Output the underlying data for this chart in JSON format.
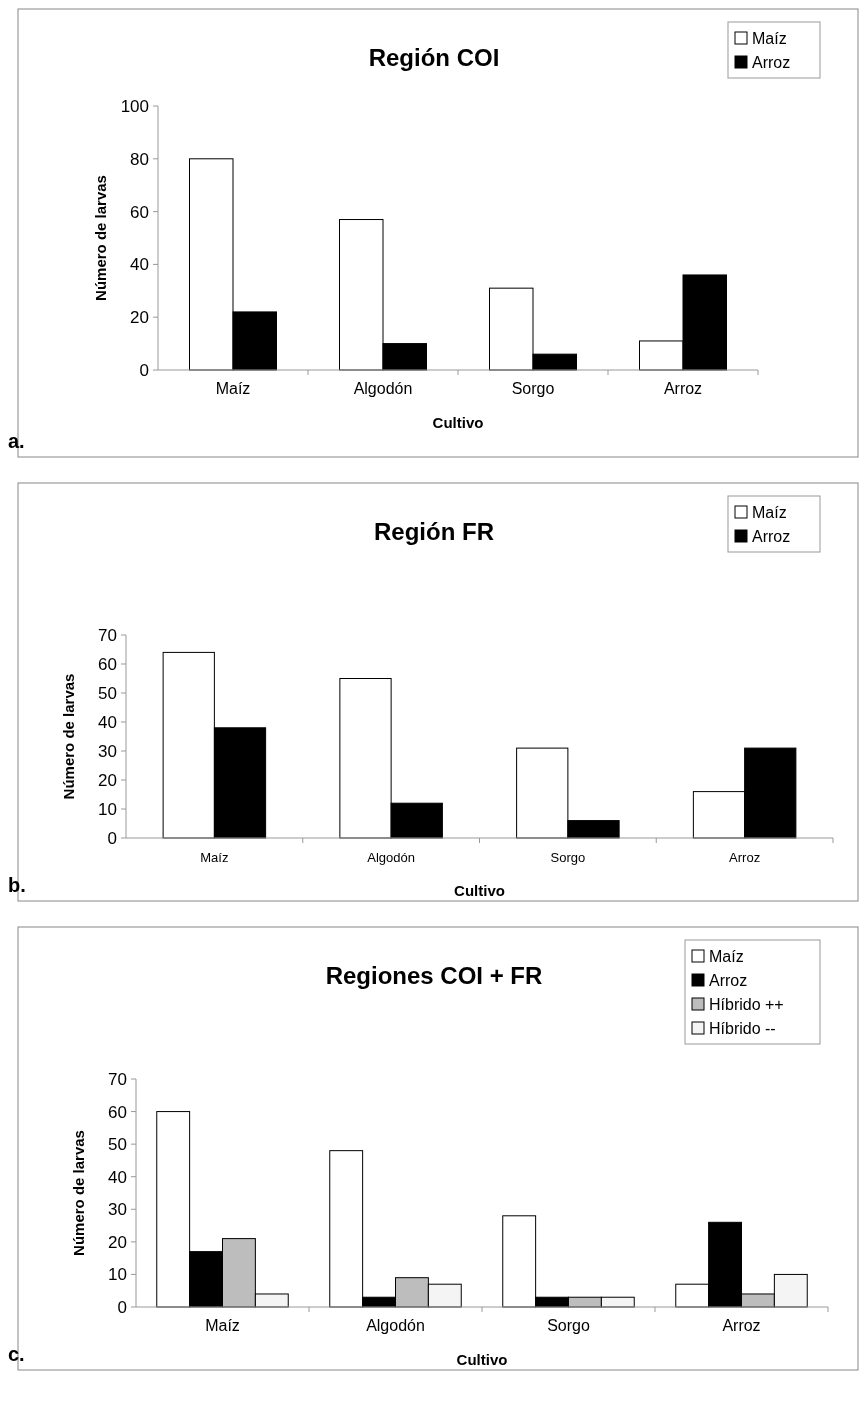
{
  "chart_data": [
    {
      "type": "bar",
      "title": "Región COI",
      "xlabel": "Cultivo",
      "ylabel": "Número de larvas",
      "categories": [
        "Maíz",
        "Algodón",
        "Sorgo",
        "Arroz"
      ],
      "series": [
        {
          "name": "Maíz",
          "color": "#ffffff",
          "values": [
            80,
            57,
            31,
            11
          ]
        },
        {
          "name": "Arroz",
          "color": "#000000",
          "values": [
            22,
            10,
            6,
            36
          ]
        }
      ],
      "ylim": [
        0,
        100
      ],
      "yticks": [
        0,
        20,
        40,
        60,
        80,
        100
      ],
      "grid": false,
      "legend": "top right",
      "annotations": [
        "a."
      ]
    },
    {
      "type": "bar",
      "title": "Región FR",
      "xlabel": "Cultivo",
      "ylabel": "Número de larvas",
      "categories": [
        "Maíz",
        "Algodón",
        "Sorgo",
        "Arroz"
      ],
      "series": [
        {
          "name": "Maíz",
          "color": "#ffffff",
          "values": [
            64,
            55,
            31,
            16
          ]
        },
        {
          "name": "Arroz",
          "color": "#000000",
          "values": [
            38,
            12,
            6,
            31
          ]
        }
      ],
      "ylim": [
        0,
        70
      ],
      "yticks": [
        0,
        10,
        20,
        30,
        40,
        50,
        60,
        70
      ],
      "grid": false,
      "legend": "top right",
      "annotations": [
        "b."
      ]
    },
    {
      "type": "bar",
      "title": "Regiones COI + FR",
      "xlabel": "Cultivo",
      "ylabel": "Número de larvas",
      "categories": [
        "Maíz",
        "Algodón",
        "Sorgo",
        "Arroz"
      ],
      "series": [
        {
          "name": "Maíz",
          "color": "#ffffff",
          "values": [
            60,
            48,
            28,
            7
          ]
        },
        {
          "name": "Arroz",
          "color": "#000000",
          "values": [
            17,
            3,
            3,
            26
          ]
        },
        {
          "name": "Híbrido ++",
          "color": "#bdbdbd",
          "values": [
            21,
            9,
            3,
            4
          ]
        },
        {
          "name": "Híbrido --",
          "color": "#f4f4f4",
          "values": [
            4,
            7,
            3,
            10
          ]
        }
      ],
      "ylim": [
        0,
        70
      ],
      "yticks": [
        0,
        10,
        20,
        30,
        40,
        50,
        60,
        70
      ],
      "grid": false,
      "legend": "top right",
      "annotations": [
        "c."
      ]
    }
  ]
}
